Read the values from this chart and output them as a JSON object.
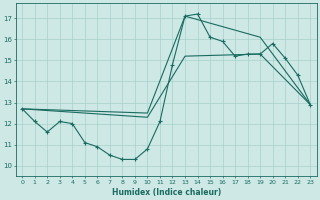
{
  "xlabel": "Humidex (Indice chaleur)",
  "xlim": [
    -0.5,
    23.5
  ],
  "ylim": [
    9.5,
    17.7
  ],
  "xticks": [
    0,
    1,
    2,
    3,
    4,
    5,
    6,
    7,
    8,
    9,
    10,
    11,
    12,
    13,
    14,
    15,
    16,
    17,
    18,
    19,
    20,
    21,
    22,
    23
  ],
  "yticks": [
    10,
    11,
    12,
    13,
    14,
    15,
    16,
    17
  ],
  "background_color": "#cde8e5",
  "grid_color": "#a8d0cc",
  "line_color": "#1a6b60",
  "line1_x": [
    0,
    1,
    2,
    3,
    4,
    5,
    6,
    7,
    8,
    9,
    10,
    11,
    12,
    13,
    14,
    15,
    16,
    17,
    18,
    19,
    20,
    21,
    22,
    23
  ],
  "line1_y": [
    12.7,
    12.1,
    11.6,
    12.1,
    12.0,
    11.1,
    10.9,
    10.5,
    10.3,
    10.3,
    10.8,
    12.1,
    14.8,
    17.1,
    17.2,
    16.1,
    15.9,
    15.2,
    15.3,
    15.3,
    15.8,
    15.1,
    14.3,
    12.9
  ],
  "line2_x": [
    0,
    10,
    13,
    19,
    23
  ],
  "line2_y": [
    12.7,
    12.3,
    15.2,
    15.3,
    12.9
  ],
  "line3_x": [
    0,
    10,
    13,
    19,
    23
  ],
  "line3_y": [
    12.7,
    12.5,
    17.1,
    16.1,
    12.9
  ]
}
